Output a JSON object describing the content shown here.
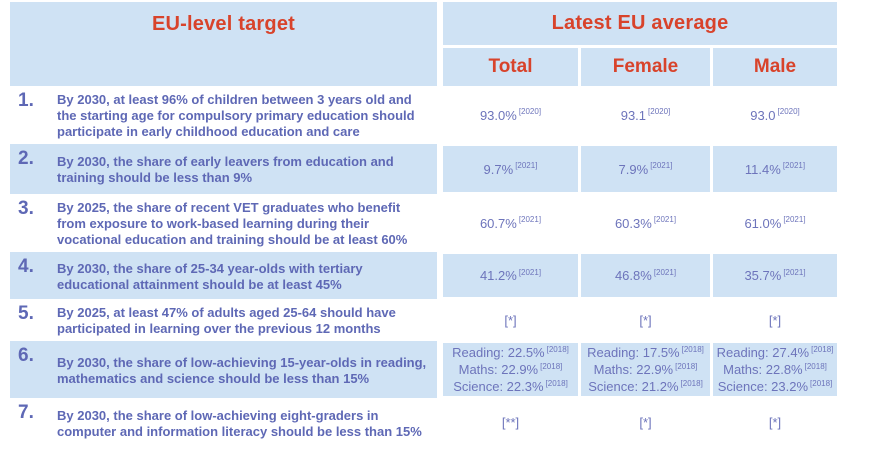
{
  "colors": {
    "accent_red": "#d8432b",
    "text_blue": "#5e68b5",
    "value_blue": "#6d74bb",
    "row_blue": "#cfe2f4"
  },
  "chart_data": {
    "type": "table",
    "header": {
      "left_title": "EU-level target",
      "right_title": "Latest EU average",
      "sub_columns": [
        "Total",
        "Female",
        "Male"
      ]
    },
    "rows": [
      {
        "num": "1.",
        "target": "By 2030, at least 96% of children between 3 years old and the starting age for compulsory primary education should participate in early childhood education and care",
        "values": {
          "total": [
            {
              "text": "93.0%",
              "note": "[2020]"
            }
          ],
          "female": [
            {
              "text": "93.1",
              "note": "[2020]"
            }
          ],
          "male": [
            {
              "text": "93.0",
              "note": "[2020]"
            }
          ]
        }
      },
      {
        "num": "2.",
        "target": "By 2030, the share of early leavers from education and training should be less than 9%",
        "values": {
          "total": [
            {
              "text": "9.7%",
              "note": "[2021]"
            }
          ],
          "female": [
            {
              "text": "7.9%",
              "note": "[2021]"
            }
          ],
          "male": [
            {
              "text": "11.4%",
              "note": "[2021]"
            }
          ]
        }
      },
      {
        "num": "3.",
        "target": "By 2025, the share of recent VET graduates who benefit from exposure to work-based learning during their vocational education and training should be at least 60%",
        "values": {
          "total": [
            {
              "text": "60.7%",
              "note": "[2021]"
            }
          ],
          "female": [
            {
              "text": "60.3%",
              "note": "[2021]"
            }
          ],
          "male": [
            {
              "text": "61.0%",
              "note": "[2021]"
            }
          ]
        }
      },
      {
        "num": "4.",
        "target": "By 2030, the share of 25-34 year-olds with tertiary educational attainment should be at least 45%",
        "values": {
          "total": [
            {
              "text": "41.2%",
              "note": "[2021]"
            }
          ],
          "female": [
            {
              "text": "46.8%",
              "note": "[2021]"
            }
          ],
          "male": [
            {
              "text": "35.7%",
              "note": "[2021]"
            }
          ]
        }
      },
      {
        "num": "5.",
        "target": "By 2025, at least 47% of adults aged 25-64 should have participated in learning over the previous 12 months",
        "values": {
          "total": [
            {
              "text": "[*]"
            }
          ],
          "female": [
            {
              "text": "[*]"
            }
          ],
          "male": [
            {
              "text": "[*]"
            }
          ]
        }
      },
      {
        "num": "6.",
        "target": "By 2030, the share of low-achieving 15-year-olds in reading, mathematics and science should be less than 15%",
        "values": {
          "total": [
            {
              "text": "Reading: 22.5%",
              "note": "[2018]"
            },
            {
              "text": "Maths: 22.9%",
              "note": "[2018]"
            },
            {
              "text": "Science: 22.3%",
              "note": "[2018]"
            }
          ],
          "female": [
            {
              "text": "Reading: 17.5%",
              "note": "[2018]"
            },
            {
              "text": "Maths: 22.9%",
              "note": "[2018]"
            },
            {
              "text": "Science: 21.2%",
              "note": "[2018]"
            }
          ],
          "male": [
            {
              "text": "Reading: 27.4%",
              "note": "[2018]"
            },
            {
              "text": "Maths: 22.8%",
              "note": "[2018]"
            },
            {
              "text": "Science: 23.2%",
              "note": "[2018]"
            }
          ]
        }
      },
      {
        "num": "7.",
        "target": "By 2030, the share of low-achieving eight-graders in computer and information literacy should be less than 15%",
        "values": {
          "total": [
            {
              "text": "[**]"
            }
          ],
          "female": [
            {
              "text": "[*]"
            }
          ],
          "male": [
            {
              "text": "[*]"
            }
          ]
        }
      }
    ]
  }
}
